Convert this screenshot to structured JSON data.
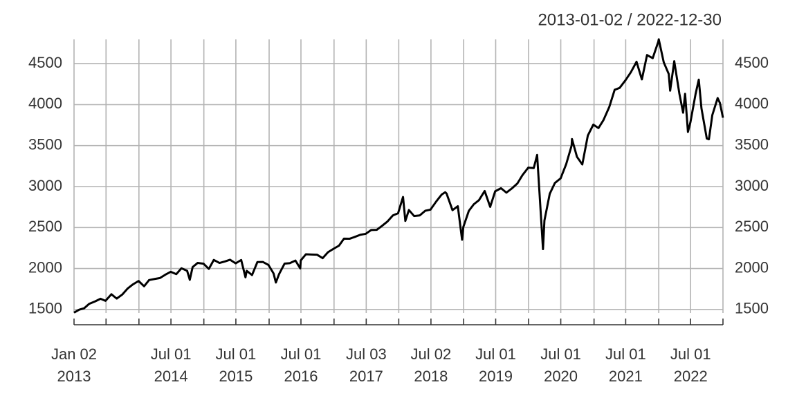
{
  "chart_data": {
    "type": "line",
    "title": "2013-01-02 / 2022-12-30",
    "color": "#000000",
    "grid": true,
    "xlim": [
      "2013-01-02",
      "2022-12-30"
    ],
    "ylim": [
      1457,
      4796
    ],
    "yticks": [
      1500,
      2000,
      2500,
      3000,
      3500,
      4000,
      4500
    ],
    "xticks": [
      {
        "value": "2013-01-02",
        "label": "Jan 02\n2013"
      },
      {
        "value": "2013-07-01",
        "label": null
      },
      {
        "value": "2014-01-02",
        "label": null
      },
      {
        "value": "2014-07-01",
        "label": "Jul 01\n2014"
      },
      {
        "value": "2015-01-02",
        "label": null
      },
      {
        "value": "2015-07-01",
        "label": "Jul 01\n2015"
      },
      {
        "value": "2016-01-04",
        "label": null
      },
      {
        "value": "2016-07-01",
        "label": "Jul 01\n2016"
      },
      {
        "value": "2017-01-03",
        "label": null
      },
      {
        "value": "2017-07-03",
        "label": "Jul 03\n2017"
      },
      {
        "value": "2018-01-02",
        "label": null
      },
      {
        "value": "2018-07-02",
        "label": "Jul 02\n2018"
      },
      {
        "value": "2019-01-02",
        "label": null
      },
      {
        "value": "2019-07-01",
        "label": "Jul 01\n2019"
      },
      {
        "value": "2020-01-02",
        "label": null
      },
      {
        "value": "2020-07-01",
        "label": "Jul 01\n2020"
      },
      {
        "value": "2021-01-04",
        "label": null
      },
      {
        "value": "2021-07-01",
        "label": "Jul 01\n2021"
      },
      {
        "value": "2022-01-03",
        "label": null
      },
      {
        "value": "2022-07-01",
        "label": "Jul 01\n2022"
      },
      {
        "value": "2022-12-30",
        "label": null
      }
    ],
    "x": [
      "2013-01-02",
      "2013-01-31",
      "2013-02-28",
      "2013-03-28",
      "2013-04-30",
      "2013-05-31",
      "2013-06-28",
      "2013-07-31",
      "2013-08-30",
      "2013-09-30",
      "2013-10-31",
      "2013-11-29",
      "2013-12-31",
      "2014-01-31",
      "2014-02-28",
      "2014-03-31",
      "2014-04-30",
      "2014-05-30",
      "2014-06-30",
      "2014-07-31",
      "2014-08-29",
      "2014-09-30",
      "2014-10-15",
      "2014-10-31",
      "2014-11-28",
      "2014-12-31",
      "2015-01-30",
      "2015-02-27",
      "2015-03-31",
      "2015-04-30",
      "2015-05-29",
      "2015-06-30",
      "2015-07-31",
      "2015-08-24",
      "2015-08-31",
      "2015-09-30",
      "2015-10-30",
      "2015-11-30",
      "2015-12-31",
      "2016-01-29",
      "2016-02-11",
      "2016-02-29",
      "2016-03-31",
      "2016-04-29",
      "2016-05-31",
      "2016-06-27",
      "2016-06-30",
      "2016-07-29",
      "2016-08-31",
      "2016-09-30",
      "2016-10-31",
      "2016-11-30",
      "2016-12-30",
      "2017-01-31",
      "2017-02-28",
      "2017-03-31",
      "2017-04-28",
      "2017-05-31",
      "2017-06-30",
      "2017-07-31",
      "2017-08-31",
      "2017-09-29",
      "2017-10-31",
      "2017-11-30",
      "2017-12-29",
      "2018-01-26",
      "2018-02-08",
      "2018-02-28",
      "2018-03-29",
      "2018-04-30",
      "2018-05-31",
      "2018-06-29",
      "2018-07-31",
      "2018-08-31",
      "2018-09-20",
      "2018-09-28",
      "2018-10-31",
      "2018-11-30",
      "2018-12-24",
      "2018-12-31",
      "2019-01-31",
      "2019-02-28",
      "2019-03-29",
      "2019-04-30",
      "2019-05-31",
      "2019-06-28",
      "2019-07-31",
      "2019-08-30",
      "2019-09-30",
      "2019-10-31",
      "2019-11-29",
      "2019-12-31",
      "2020-01-31",
      "2020-02-19",
      "2020-03-23",
      "2020-03-31",
      "2020-04-30",
      "2020-05-29",
      "2020-06-30",
      "2020-07-31",
      "2020-08-31",
      "2020-09-02",
      "2020-09-30",
      "2020-10-30",
      "2020-11-30",
      "2020-12-31",
      "2021-01-29",
      "2021-02-26",
      "2021-03-31",
      "2021-04-30",
      "2021-05-28",
      "2021-06-30",
      "2021-07-30",
      "2021-08-31",
      "2021-09-30",
      "2021-10-29",
      "2021-11-30",
      "2021-12-31",
      "2022-01-03",
      "2022-01-31",
      "2022-02-28",
      "2022-03-08",
      "2022-03-31",
      "2022-04-29",
      "2022-05-20",
      "2022-05-31",
      "2022-06-16",
      "2022-06-30",
      "2022-07-29",
      "2022-08-16",
      "2022-08-31",
      "2022-09-30",
      "2022-10-12",
      "2022-10-31",
      "2022-11-30",
      "2022-12-13",
      "2022-12-30"
    ],
    "values": [
      1462,
      1498,
      1515,
      1569,
      1598,
      1631,
      1606,
      1686,
      1633,
      1682,
      1757,
      1806,
      1848,
      1783,
      1859,
      1872,
      1884,
      1924,
      1960,
      1931,
      2003,
      1972,
      1862,
      2018,
      2068,
      2059,
      1995,
      2105,
      2068,
      2086,
      2107,
      2063,
      2104,
      1893,
      1972,
      1920,
      2079,
      2080,
      2044,
      1940,
      1829,
      1932,
      2060,
      2065,
      2097,
      2001,
      2099,
      2174,
      2171,
      2168,
      2126,
      2199,
      2239,
      2279,
      2364,
      2363,
      2384,
      2412,
      2423,
      2470,
      2472,
      2519,
      2575,
      2648,
      2674,
      2873,
      2581,
      2714,
      2641,
      2648,
      2705,
      2718,
      2816,
      2902,
      2931,
      2914,
      2712,
      2760,
      2351,
      2507,
      2704,
      2784,
      2834,
      2946,
      2752,
      2942,
      2980,
      2926,
      2977,
      3038,
      3141,
      3231,
      3226,
      3386,
      2237,
      2585,
      2912,
      3044,
      3100,
      3271,
      3500,
      3580,
      3363,
      3270,
      3622,
      3756,
      3714,
      3811,
      3973,
      4181,
      4204,
      4298,
      4395,
      4523,
      4308,
      4605,
      4567,
      4766,
      4797,
      4516,
      4374,
      4170,
      4530,
      4132,
      3901,
      4132,
      3667,
      3785,
      4130,
      4305,
      3955,
      3586,
      3577,
      3872,
      4080,
      4019,
      3840
    ]
  }
}
